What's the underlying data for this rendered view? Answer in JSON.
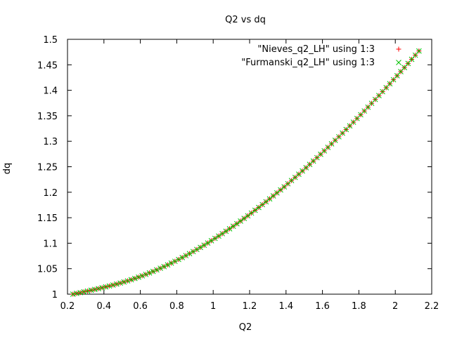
{
  "chart_data": {
    "type": "scatter",
    "title": "Q2 vs dq",
    "xlabel": "Q2",
    "ylabel": "dq",
    "xlim": [
      0.2,
      2.2
    ],
    "ylim": [
      1.0,
      1.5
    ],
    "xticks": [
      0.2,
      0.4,
      0.6,
      0.8,
      1.0,
      1.2,
      1.4,
      1.6,
      1.8,
      2.0,
      2.2
    ],
    "yticks": [
      1.0,
      1.05,
      1.1,
      1.15,
      1.2,
      1.25,
      1.3,
      1.35,
      1.4,
      1.45,
      1.5
    ],
    "xtick_labels": [
      "0.2",
      "0.4",
      "0.6",
      "0.8",
      "1",
      "1.2",
      "1.4",
      "1.6",
      "1.8",
      "2",
      "2.2"
    ],
    "ytick_labels": [
      "1",
      "1.05",
      "1.1",
      "1.15",
      "1.2",
      "1.25",
      "1.3",
      "1.35",
      "1.4",
      "1.45",
      "1.5"
    ],
    "grid": false,
    "legend_position": "top-right",
    "series": [
      {
        "name": "\"Nieves_q2_LH\" using 1:3",
        "marker": "plus",
        "color": "#ff0000",
        "x": [
          0.23,
          0.25,
          0.27,
          0.29,
          0.31,
          0.33,
          0.35,
          0.37,
          0.39,
          0.41,
          0.43,
          0.45,
          0.47,
          0.49,
          0.51,
          0.53,
          0.55,
          0.57,
          0.59,
          0.61,
          0.63,
          0.65,
          0.67,
          0.69,
          0.71,
          0.73,
          0.75,
          0.77,
          0.79,
          0.81,
          0.83,
          0.85,
          0.87,
          0.89,
          0.91,
          0.93,
          0.95,
          0.97,
          0.99,
          1.01,
          1.03,
          1.05,
          1.07,
          1.09,
          1.11,
          1.13,
          1.15,
          1.17,
          1.19,
          1.21,
          1.23,
          1.25,
          1.27,
          1.29,
          1.31,
          1.33,
          1.35,
          1.37,
          1.39,
          1.41,
          1.43,
          1.45,
          1.47,
          1.49,
          1.51,
          1.53,
          1.55,
          1.57,
          1.59,
          1.61,
          1.63,
          1.65,
          1.67,
          1.69,
          1.71,
          1.73,
          1.75,
          1.77,
          1.79,
          1.81,
          1.83,
          1.85,
          1.87,
          1.89,
          1.91,
          1.93,
          1.95,
          1.97,
          1.99,
          2.01,
          2.03,
          2.05,
          2.07,
          2.09,
          2.11,
          2.13
        ],
        "y": [
          1.0,
          1.0015,
          1.003,
          1.0046,
          1.0061,
          1.0077,
          1.0093,
          1.0109,
          1.0126,
          1.0143,
          1.0161,
          1.0179,
          1.0198,
          1.0218,
          1.0239,
          1.0261,
          1.0284,
          1.0308,
          1.0334,
          1.036,
          1.0388,
          1.0417,
          1.0446,
          1.0477,
          1.0509,
          1.0541,
          1.0575,
          1.0609,
          1.0645,
          1.0681,
          1.0718,
          1.0757,
          1.0796,
          1.0836,
          1.0877,
          1.0918,
          1.0961,
          1.1004,
          1.1049,
          1.1094,
          1.114,
          1.1187,
          1.1235,
          1.1283,
          1.1333,
          1.1383,
          1.1434,
          1.1486,
          1.1538,
          1.1592,
          1.1646,
          1.1701,
          1.1757,
          1.1813,
          1.187,
          1.1928,
          1.1987,
          1.2046,
          1.2106,
          1.2167,
          1.2229,
          1.2291,
          1.2354,
          1.2417,
          1.2481,
          1.2546,
          1.2612,
          1.2678,
          1.2745,
          1.2812,
          1.288,
          1.2949,
          1.3018,
          1.3088,
          1.3159,
          1.323,
          1.3302,
          1.3374,
          1.3447,
          1.352,
          1.3594,
          1.3669,
          1.3744,
          1.382,
          1.3896,
          1.3973,
          1.4051,
          1.4129,
          1.4207,
          1.4286,
          1.4366,
          1.4446,
          1.4526,
          1.4607,
          1.4689,
          1.4771
        ]
      },
      {
        "name": "\"Furmanski_q2_LH\" using 1:3",
        "marker": "cross",
        "color": "#00c000",
        "x": [
          0.23,
          0.25,
          0.27,
          0.29,
          0.31,
          0.33,
          0.35,
          0.37,
          0.39,
          0.41,
          0.43,
          0.45,
          0.47,
          0.49,
          0.51,
          0.53,
          0.55,
          0.57,
          0.59,
          0.61,
          0.63,
          0.65,
          0.67,
          0.69,
          0.71,
          0.73,
          0.75,
          0.77,
          0.79,
          0.81,
          0.83,
          0.85,
          0.87,
          0.89,
          0.91,
          0.93,
          0.95,
          0.97,
          0.99,
          1.01,
          1.03,
          1.05,
          1.07,
          1.09,
          1.11,
          1.13,
          1.15,
          1.17,
          1.19,
          1.21,
          1.23,
          1.25,
          1.27,
          1.29,
          1.31,
          1.33,
          1.35,
          1.37,
          1.39,
          1.41,
          1.43,
          1.45,
          1.47,
          1.49,
          1.51,
          1.53,
          1.55,
          1.57,
          1.59,
          1.61,
          1.63,
          1.65,
          1.67,
          1.69,
          1.71,
          1.73,
          1.75,
          1.77,
          1.79,
          1.81,
          1.83,
          1.85,
          1.87,
          1.89,
          1.91,
          1.93,
          1.95,
          1.97,
          1.99,
          2.01,
          2.03,
          2.05,
          2.07,
          2.09,
          2.11,
          2.13
        ],
        "y": [
          1.0,
          1.0015,
          1.003,
          1.0046,
          1.0061,
          1.0077,
          1.0093,
          1.0109,
          1.0126,
          1.0143,
          1.0161,
          1.0179,
          1.0198,
          1.0218,
          1.0239,
          1.0261,
          1.0284,
          1.0308,
          1.0334,
          1.036,
          1.0388,
          1.0417,
          1.0446,
          1.0477,
          1.0509,
          1.0541,
          1.0575,
          1.0609,
          1.0645,
          1.0681,
          1.0718,
          1.0757,
          1.0796,
          1.0836,
          1.0877,
          1.0918,
          1.0961,
          1.1004,
          1.1049,
          1.1094,
          1.114,
          1.1187,
          1.1235,
          1.1283,
          1.1333,
          1.1383,
          1.1434,
          1.1486,
          1.1538,
          1.1592,
          1.1646,
          1.1701,
          1.1757,
          1.1813,
          1.187,
          1.1928,
          1.1987,
          1.2046,
          1.2106,
          1.2167,
          1.2229,
          1.2291,
          1.2354,
          1.2417,
          1.2481,
          1.2546,
          1.2612,
          1.2678,
          1.2745,
          1.2812,
          1.288,
          1.2949,
          1.3018,
          1.3088,
          1.3159,
          1.323,
          1.3302,
          1.3374,
          1.3447,
          1.352,
          1.3594,
          1.3669,
          1.3744,
          1.382,
          1.3896,
          1.3973,
          1.4051,
          1.4129,
          1.4207,
          1.4286,
          1.4366,
          1.4446,
          1.4526,
          1.4607,
          1.4689,
          1.4771
        ]
      }
    ]
  }
}
